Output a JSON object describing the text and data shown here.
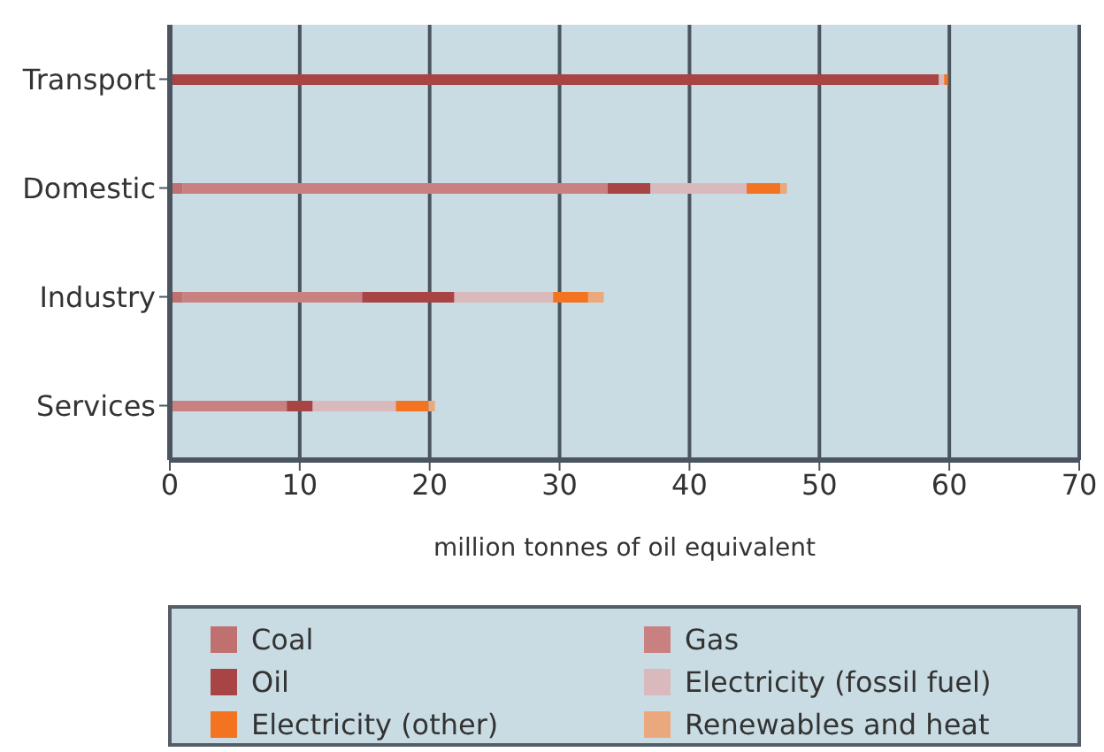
{
  "chart_data": {
    "type": "bar",
    "orientation": "horizontal",
    "stacked": true,
    "xlabel": "million tonnes of oil equivalent",
    "categories": [
      "Transport",
      "Domestic",
      "Industry",
      "Services"
    ],
    "series": [
      {
        "name": "Coal",
        "color": "#c0706e",
        "values": [
          0,
          1.0,
          1.0,
          0
        ]
      },
      {
        "name": "Gas",
        "color": "#c98080",
        "values": [
          0,
          32.7,
          13.8,
          9.0
        ]
      },
      {
        "name": "Oil",
        "color": "#a84444",
        "values": [
          59.2,
          3.3,
          7.1,
          2.0
        ]
      },
      {
        "name": "Electricity (fossil fuel)",
        "color": "#d9b9bb",
        "values": [
          0.4,
          7.4,
          7.6,
          6.4
        ]
      },
      {
        "name": "Electricity (other)",
        "color": "#f47321",
        "values": [
          0.3,
          2.6,
          2.7,
          2.5
        ]
      },
      {
        "name": "Renewables and heat",
        "color": "#eba87c",
        "values": [
          0,
          0.5,
          1.2,
          0.5
        ]
      }
    ],
    "xlim": [
      0,
      70
    ],
    "xticks": [
      0,
      10,
      20,
      30,
      40,
      50,
      60,
      70
    ],
    "grid": "x",
    "legend": "bottom"
  }
}
